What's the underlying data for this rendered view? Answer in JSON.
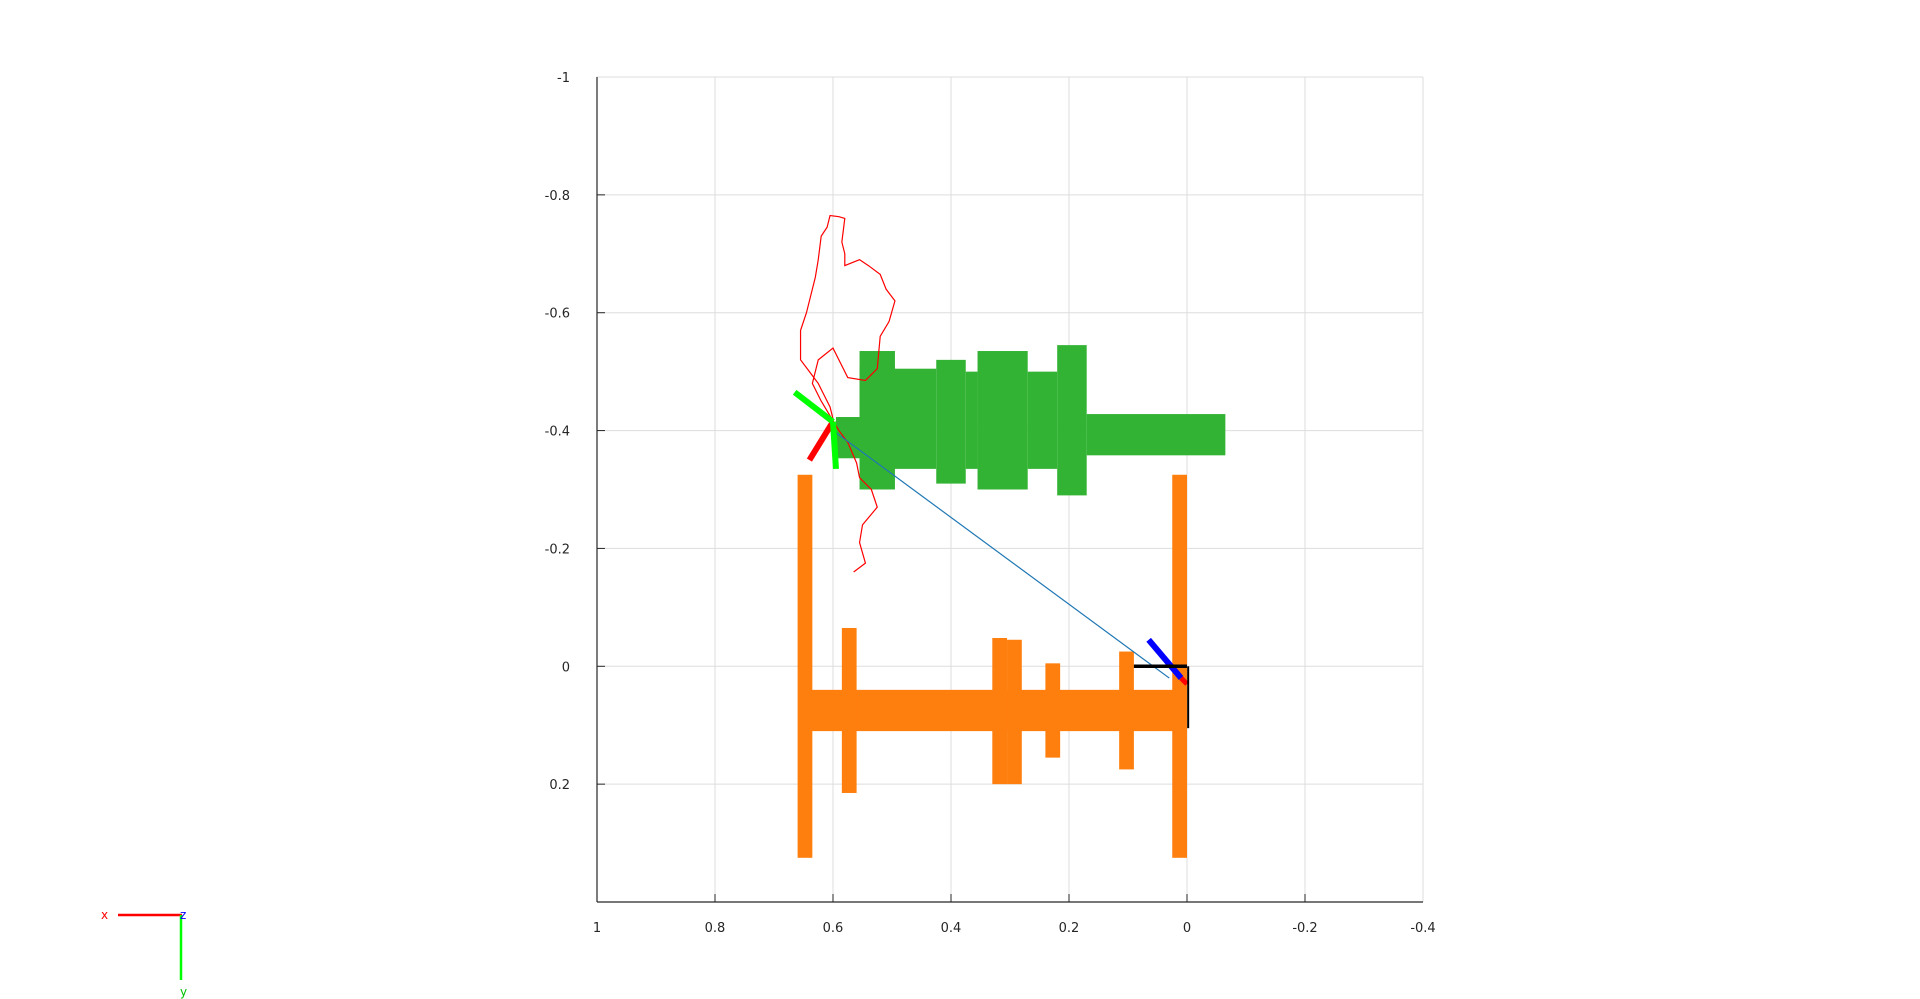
{
  "chart_data": {
    "type": "scatter",
    "title": "",
    "xlabel": "",
    "ylabel": "",
    "xlim": [
      1,
      -0.4
    ],
    "ylim": [
      -1,
      0.4
    ],
    "x_reversed": true,
    "y_reversed": true,
    "grid": true,
    "x_ticks": [
      "1",
      "0.8",
      "0.6",
      "0.4",
      "0.2",
      "0",
      "-0.2",
      "-0.4"
    ],
    "y_ticks": [
      "-1",
      "-0.8",
      "-0.6",
      "-0.4",
      "-0.2",
      "0",
      "0.2"
    ],
    "colors": {
      "green_body": "#33b333",
      "orange_body": "#ff7f0e",
      "red_path": "#ff0000",
      "blue_line": "#1f77b4",
      "axis_red": "#ff0000",
      "axis_green": "#00ff00",
      "axis_blue": "#0000ff",
      "grid": "#dddddd"
    },
    "green_body": {
      "rects": [
        [
          0.595,
          -0.423,
          0.555,
          -0.353
        ],
        [
          0.555,
          -0.51,
          0.495,
          -0.335
        ],
        [
          0.555,
          -0.535,
          0.495,
          -0.3
        ],
        [
          0.495,
          -0.505,
          0.425,
          -0.335
        ],
        [
          0.425,
          -0.52,
          0.375,
          -0.31
        ],
        [
          0.375,
          -0.5,
          0.355,
          -0.335
        ],
        [
          0.355,
          -0.535,
          0.27,
          -0.3
        ],
        [
          0.27,
          -0.5,
          0.22,
          -0.335
        ],
        [
          0.22,
          -0.545,
          0.17,
          -0.29
        ],
        [
          0.17,
          -0.428,
          -0.065,
          -0.358
        ]
      ]
    },
    "orange_body": {
      "rects": [
        [
          0.66,
          -0.325,
          0.635,
          0.325
        ],
        [
          0.025,
          -0.325,
          0.0,
          0.325
        ],
        [
          0.64,
          0.04,
          0.0,
          0.11
        ],
        [
          0.585,
          -0.065,
          0.56,
          0.215
        ],
        [
          0.33,
          -0.048,
          0.305,
          0.2
        ],
        [
          0.305,
          -0.045,
          0.28,
          0.2
        ],
        [
          0.24,
          -0.005,
          0.215,
          0.155
        ],
        [
          0.115,
          -0.025,
          0.09,
          0.175
        ]
      ]
    },
    "red_path": {
      "points": [
        [
          0.565,
          -0.16
        ],
        [
          0.545,
          -0.175
        ],
        [
          0.555,
          -0.21
        ],
        [
          0.55,
          -0.24
        ],
        [
          0.525,
          -0.27
        ],
        [
          0.535,
          -0.3
        ],
        [
          0.555,
          -0.32
        ],
        [
          0.56,
          -0.345
        ],
        [
          0.575,
          -0.38
        ],
        [
          0.59,
          -0.4
        ],
        [
          0.605,
          -0.425
        ],
        [
          0.62,
          -0.45
        ],
        [
          0.635,
          -0.48
        ],
        [
          0.625,
          -0.52
        ],
        [
          0.6,
          -0.54
        ],
        [
          0.585,
          -0.51
        ],
        [
          0.575,
          -0.49
        ],
        [
          0.545,
          -0.485
        ],
        [
          0.525,
          -0.505
        ],
        [
          0.52,
          -0.56
        ],
        [
          0.505,
          -0.585
        ],
        [
          0.495,
          -0.62
        ],
        [
          0.51,
          -0.64
        ],
        [
          0.52,
          -0.665
        ],
        [
          0.54,
          -0.68
        ],
        [
          0.555,
          -0.69
        ],
        [
          0.58,
          -0.68
        ],
        [
          0.58,
          -0.7
        ],
        [
          0.585,
          -0.72
        ],
        [
          0.58,
          -0.76
        ],
        [
          0.59,
          -0.763
        ],
        [
          0.605,
          -0.765
        ],
        [
          0.61,
          -0.745
        ],
        [
          0.62,
          -0.73
        ],
        [
          0.625,
          -0.69
        ],
        [
          0.63,
          -0.66
        ],
        [
          0.645,
          -0.6
        ],
        [
          0.655,
          -0.57
        ],
        [
          0.655,
          -0.52
        ],
        [
          0.64,
          -0.5
        ],
        [
          0.625,
          -0.48
        ],
        [
          0.615,
          -0.46
        ],
        [
          0.605,
          -0.44
        ],
        [
          0.6,
          -0.42
        ]
      ]
    },
    "blue_line": {
      "from": [
        0.6,
        -0.4
      ],
      "to": [
        0.03,
        0.02
      ]
    },
    "frames": [
      {
        "origin": [
          0.6,
          -0.415
        ],
        "x_axis": [
          0.64,
          -0.35
        ],
        "y_axis": [
          0.665,
          -0.465
        ],
        "z_axis": [
          0.595,
          -0.335
        ]
      },
      {
        "origin": [
          0.01,
          0.02
        ],
        "z_axis": [
          0.065,
          -0.045
        ],
        "x_axis": [
          0.0,
          0.03
        ],
        "black_h": [
          [
            0.09,
            0.0
          ],
          [
            0.0,
            0.0
          ]
        ],
        "black_v": [
          [
            -0.002,
            0.0
          ],
          [
            -0.002,
            0.105
          ]
        ]
      }
    ]
  },
  "triad": {
    "x_label": "x",
    "y_label": "y",
    "z_label": "z"
  }
}
